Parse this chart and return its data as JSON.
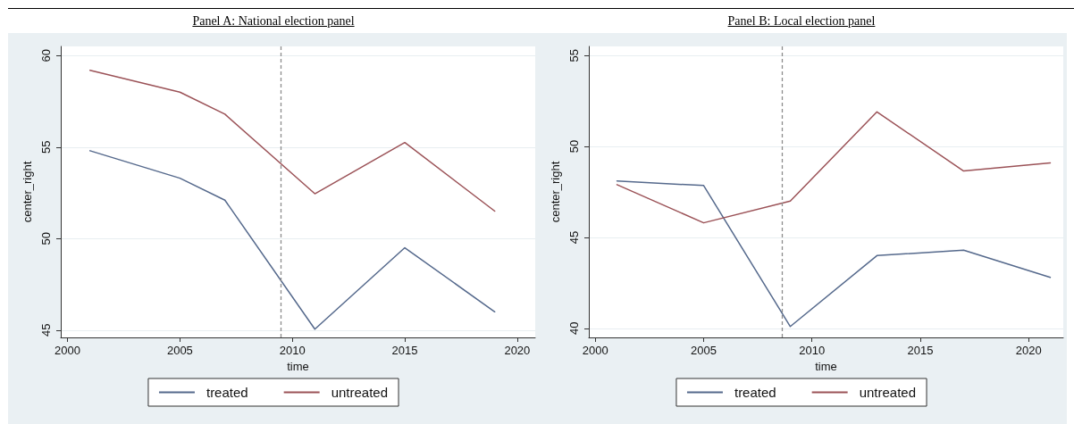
{
  "chart_data": [
    {
      "type": "line",
      "title": "Panel A: National election panel",
      "xlabel": "time",
      "ylabel": "center_right",
      "series": [
        {
          "name": "treated",
          "color": "#55698c",
          "x": [
            2001,
            2005,
            2007,
            2011,
            2015,
            2019
          ],
          "values": [
            54.8,
            53.3,
            52.1,
            45.05,
            49.5,
            46.0
          ]
        },
        {
          "name": "untreated",
          "color": "#9b5257",
          "x": [
            2001,
            2005,
            2007,
            2011,
            2015,
            2019
          ],
          "values": [
            59.2,
            58.0,
            56.8,
            52.45,
            55.25,
            51.5
          ]
        }
      ],
      "xlim": [
        1999.7,
        2020.8
      ],
      "xticks": [
        2000,
        2005,
        2010,
        2015,
        2020
      ],
      "ylim": [
        44.6,
        60.5
      ],
      "yticks": [
        45,
        50,
        55,
        60
      ],
      "ref_lines": [
        {
          "axis": "x",
          "value": 2009.5,
          "color": "#8c8c8c",
          "line_style": "dashed"
        }
      ],
      "grid": "y",
      "legend": "bottom",
      "marker": "none",
      "line_style": "solid"
    },
    {
      "type": "line",
      "title": "Panel B: Local election panel",
      "xlabel": "time",
      "ylabel": "center_right",
      "series": [
        {
          "name": "treated",
          "color": "#55698c",
          "x": [
            2001,
            2005,
            2009,
            2013,
            2017,
            2021
          ],
          "values": [
            48.1,
            47.85,
            40.1,
            44.0,
            44.3,
            42.8
          ]
        },
        {
          "name": "untreated",
          "color": "#9b5257",
          "x": [
            2001,
            2005,
            2009,
            2013,
            2017,
            2021
          ],
          "values": [
            47.9,
            45.8,
            47.0,
            51.9,
            48.65,
            49.1
          ]
        }
      ],
      "xlim": [
        1999.7,
        2021.6
      ],
      "xticks": [
        2000,
        2005,
        2010,
        2015,
        2020
      ],
      "ylim": [
        39.5,
        55.5
      ],
      "yticks": [
        40,
        45,
        50,
        55
      ],
      "ref_lines": [
        {
          "axis": "x",
          "value": 2008.6,
          "color": "#8c8c8c",
          "line_style": "dashed"
        }
      ],
      "grid": "y",
      "legend": "bottom",
      "marker": "none",
      "line_style": "solid"
    }
  ]
}
